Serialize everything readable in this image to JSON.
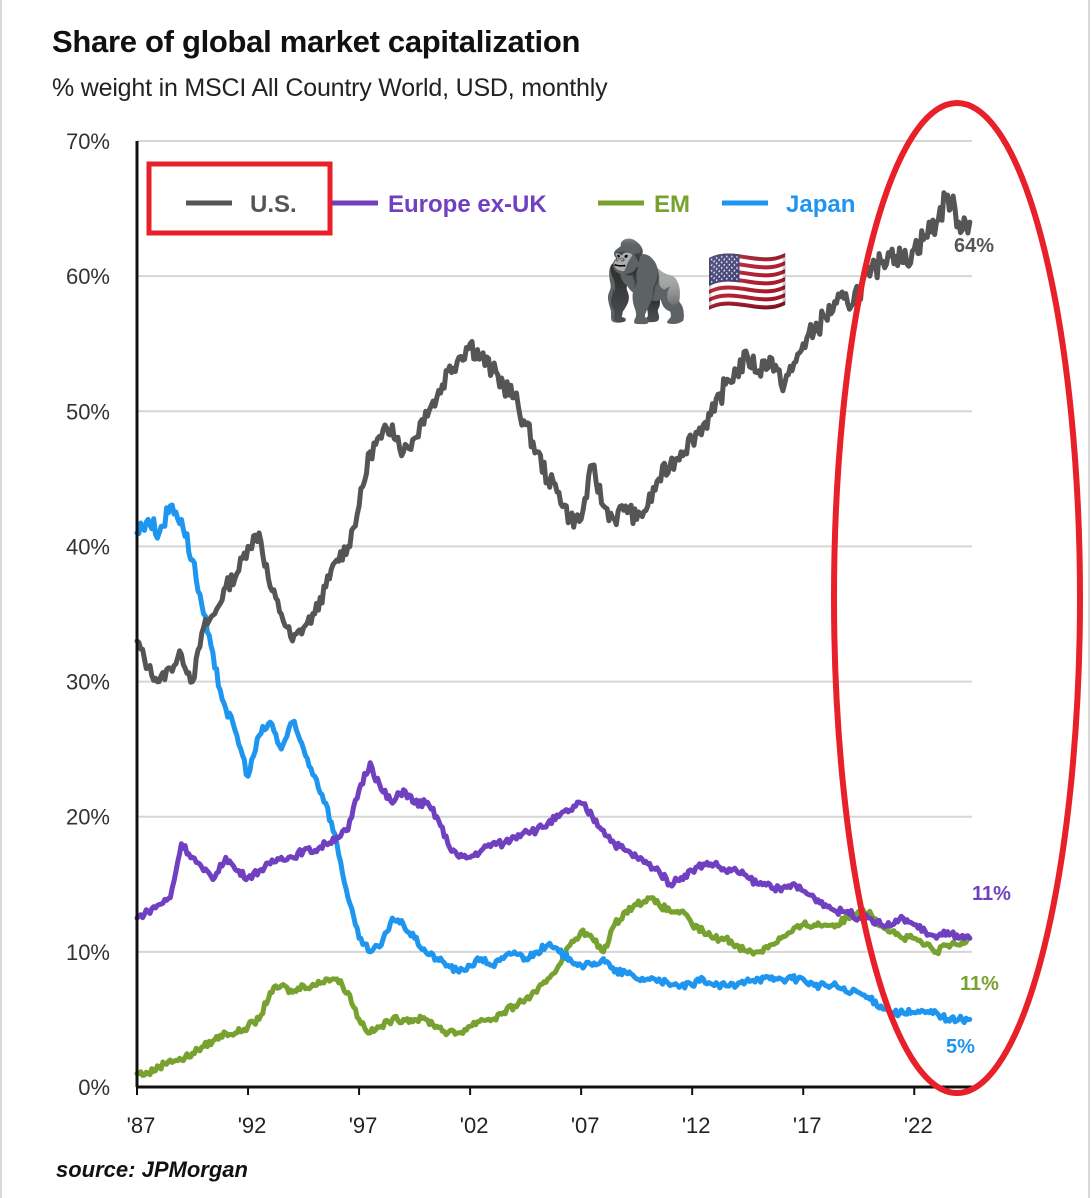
{
  "header": {
    "title": "Share of global market capitalization",
    "subtitle": "% weight in MSCI All Country World, USD, monthly"
  },
  "footer": {
    "source": "source: JPMorgan"
  },
  "annotations": {
    "emoji": [
      "gorilla-emoji",
      "us-flag-emoji"
    ],
    "emoji_glyphs": [
      "🦍",
      "🇺🇸"
    ],
    "highlight_color": "#e8202a"
  },
  "chart_data": {
    "type": "line",
    "title": "Share of global market capitalization",
    "subtitle": "% weight in MSCI All Country World, USD, monthly",
    "xlabel": "",
    "ylabel": "",
    "xlim": [
      1987,
      2024.9
    ],
    "ylim": [
      0,
      70
    ],
    "grid": true,
    "legend_position": "top-left",
    "x_ticks": [
      "'87",
      "'92",
      "'97",
      "'02",
      "'07",
      "'12",
      "'17",
      "'22"
    ],
    "x_tick_values": [
      1987,
      1992,
      1997,
      2002,
      2007,
      2012,
      2017,
      2022
    ],
    "y_ticks": [
      "0%",
      "10%",
      "20%",
      "30%",
      "40%",
      "50%",
      "60%",
      "70%"
    ],
    "y_tick_values": [
      0,
      10,
      20,
      30,
      40,
      50,
      60,
      70
    ],
    "series": [
      {
        "name": "U.S.",
        "color": "#555555",
        "end_label": "64%",
        "points": [
          [
            1987,
            33
          ],
          [
            1987.5,
            31
          ],
          [
            1988,
            30
          ],
          [
            1988.5,
            31
          ],
          [
            1989,
            32
          ],
          [
            1989.5,
            30
          ],
          [
            1990,
            34
          ],
          [
            1990.5,
            35
          ],
          [
            1991,
            37
          ],
          [
            1991.5,
            38
          ],
          [
            1992,
            40
          ],
          [
            1992.5,
            41
          ],
          [
            1993,
            37
          ],
          [
            1993.5,
            35
          ],
          [
            1994,
            33
          ],
          [
            1994.5,
            34
          ],
          [
            1995,
            35
          ],
          [
            1995.5,
            37
          ],
          [
            1996,
            39
          ],
          [
            1996.5,
            40
          ],
          [
            1997,
            43
          ],
          [
            1997.5,
            47
          ],
          [
            1998,
            48
          ],
          [
            1998.5,
            49
          ],
          [
            1999,
            47
          ],
          [
            1999.5,
            48
          ],
          [
            2000,
            50
          ],
          [
            2000.5,
            51
          ],
          [
            2001,
            53
          ],
          [
            2001.5,
            54
          ],
          [
            2002,
            55
          ],
          [
            2002.5,
            54
          ],
          [
            2003,
            53
          ],
          [
            2003.5,
            52
          ],
          [
            2004,
            51
          ],
          [
            2004.5,
            49
          ],
          [
            2005,
            47
          ],
          [
            2005.5,
            45
          ],
          [
            2006,
            44
          ],
          [
            2006.5,
            42
          ],
          [
            2007,
            42
          ],
          [
            2007.5,
            46
          ],
          [
            2008,
            43
          ],
          [
            2008.5,
            42
          ],
          [
            2009,
            43
          ],
          [
            2009.5,
            42
          ],
          [
            2010,
            43
          ],
          [
            2010.5,
            45
          ],
          [
            2011,
            46
          ],
          [
            2011.5,
            47
          ],
          [
            2012,
            48
          ],
          [
            2012.5,
            49
          ],
          [
            2013,
            50
          ],
          [
            2013.5,
            52
          ],
          [
            2014,
            53
          ],
          [
            2014.5,
            54
          ],
          [
            2015,
            53
          ],
          [
            2015.5,
            54
          ],
          [
            2016,
            52
          ],
          [
            2016.5,
            53
          ],
          [
            2017,
            55
          ],
          [
            2017.5,
            56
          ],
          [
            2018,
            57
          ],
          [
            2018.5,
            58
          ],
          [
            2019,
            58
          ],
          [
            2019.5,
            59
          ],
          [
            2020,
            60
          ],
          [
            2020.5,
            61
          ],
          [
            2021,
            62
          ],
          [
            2021.5,
            61
          ],
          [
            2022,
            62
          ],
          [
            2022.5,
            63
          ],
          [
            2023,
            64
          ],
          [
            2023.5,
            66
          ],
          [
            2024,
            64
          ],
          [
            2024.5,
            64
          ]
        ]
      },
      {
        "name": "Europe ex-UK",
        "color": "#7040c0",
        "end_label": "11%",
        "points": [
          [
            1987,
            12.5
          ],
          [
            1987.5,
            13
          ],
          [
            1988,
            13.5
          ],
          [
            1988.5,
            14
          ],
          [
            1989,
            18
          ],
          [
            1989.5,
            17
          ],
          [
            1990,
            16
          ],
          [
            1990.5,
            15.5
          ],
          [
            1991,
            17
          ],
          [
            1991.5,
            16
          ],
          [
            1992,
            15.5
          ],
          [
            1992.5,
            16
          ],
          [
            1993,
            16.5
          ],
          [
            1993.5,
            17
          ],
          [
            1994,
            17
          ],
          [
            1994.5,
            17.5
          ],
          [
            1995,
            17.5
          ],
          [
            1995.5,
            18
          ],
          [
            1996,
            18.5
          ],
          [
            1996.5,
            19
          ],
          [
            1997,
            22
          ],
          [
            1997.5,
            24
          ],
          [
            1998,
            22
          ],
          [
            1998.5,
            21
          ],
          [
            1999,
            22
          ],
          [
            1999.5,
            21
          ],
          [
            2000,
            21
          ],
          [
            2000.5,
            20
          ],
          [
            2001,
            18
          ],
          [
            2001.5,
            17
          ],
          [
            2002,
            17
          ],
          [
            2002.5,
            17.5
          ],
          [
            2003,
            18
          ],
          [
            2003.5,
            18
          ],
          [
            2004,
            18.5
          ],
          [
            2004.5,
            19
          ],
          [
            2005,
            19
          ],
          [
            2005.5,
            19.5
          ],
          [
            2006,
            20
          ],
          [
            2006.5,
            20.5
          ],
          [
            2007,
            21
          ],
          [
            2007.5,
            20
          ],
          [
            2008,
            19
          ],
          [
            2008.5,
            18
          ],
          [
            2009,
            17.5
          ],
          [
            2009.5,
            17
          ],
          [
            2010,
            16.5
          ],
          [
            2010.5,
            16
          ],
          [
            2011,
            15
          ],
          [
            2011.5,
            15.5
          ],
          [
            2012,
            16
          ],
          [
            2012.5,
            16.5
          ],
          [
            2013,
            16.5
          ],
          [
            2013.5,
            16
          ],
          [
            2014,
            16
          ],
          [
            2014.5,
            15.5
          ],
          [
            2015,
            15
          ],
          [
            2015.5,
            15
          ],
          [
            2016,
            14.5
          ],
          [
            2016.5,
            15
          ],
          [
            2017,
            14.5
          ],
          [
            2017.5,
            14
          ],
          [
            2018,
            13.5
          ],
          [
            2018.5,
            13
          ],
          [
            2019,
            13
          ],
          [
            2019.5,
            12.5
          ],
          [
            2020,
            12.5
          ],
          [
            2020.5,
            12
          ],
          [
            2021,
            12
          ],
          [
            2021.5,
            12.5
          ],
          [
            2022,
            12
          ],
          [
            2022.5,
            11.5
          ],
          [
            2023,
            11
          ],
          [
            2023.5,
            11.5
          ],
          [
            2024,
            11
          ],
          [
            2024.5,
            11
          ]
        ]
      },
      {
        "name": "EM",
        "color": "#78a22f",
        "end_label": "11%",
        "points": [
          [
            1987,
            1
          ],
          [
            1987.5,
            1
          ],
          [
            1988,
            1.5
          ],
          [
            1988.5,
            2
          ],
          [
            1989,
            2
          ],
          [
            1989.5,
            2.5
          ],
          [
            1990,
            3
          ],
          [
            1990.5,
            3.5
          ],
          [
            1991,
            4
          ],
          [
            1991.5,
            4
          ],
          [
            1992,
            4.5
          ],
          [
            1992.5,
            5
          ],
          [
            1993,
            7
          ],
          [
            1993.5,
            7.5
          ],
          [
            1994,
            7
          ],
          [
            1994.5,
            7.5
          ],
          [
            1995,
            7.5
          ],
          [
            1995.5,
            8
          ],
          [
            1996,
            8
          ],
          [
            1996.5,
            7
          ],
          [
            1997,
            5
          ],
          [
            1997.5,
            4
          ],
          [
            1998,
            4.5
          ],
          [
            1998.5,
            5
          ],
          [
            1999,
            5
          ],
          [
            1999.5,
            5
          ],
          [
            2000,
            5
          ],
          [
            2000.5,
            4.5
          ],
          [
            2001,
            4
          ],
          [
            2001.5,
            4
          ],
          [
            2002,
            4.5
          ],
          [
            2002.5,
            5
          ],
          [
            2003,
            5
          ],
          [
            2003.5,
            5.5
          ],
          [
            2004,
            6
          ],
          [
            2004.5,
            6.5
          ],
          [
            2005,
            7
          ],
          [
            2005.5,
            8
          ],
          [
            2006,
            9
          ],
          [
            2006.5,
            10.5
          ],
          [
            2007,
            11.5
          ],
          [
            2007.5,
            11
          ],
          [
            2008,
            10
          ],
          [
            2008.5,
            12
          ],
          [
            2009,
            13
          ],
          [
            2009.5,
            13.5
          ],
          [
            2010,
            14
          ],
          [
            2010.5,
            13.5
          ],
          [
            2011,
            13
          ],
          [
            2011.5,
            13
          ],
          [
            2012,
            12
          ],
          [
            2012.5,
            11.5
          ],
          [
            2013,
            11
          ],
          [
            2013.5,
            11
          ],
          [
            2014,
            10.5
          ],
          [
            2014.5,
            10
          ],
          [
            2015,
            10
          ],
          [
            2015.5,
            10.5
          ],
          [
            2016,
            11
          ],
          [
            2016.5,
            11.5
          ],
          [
            2017,
            12
          ],
          [
            2017.5,
            12
          ],
          [
            2018,
            12
          ],
          [
            2018.5,
            12
          ],
          [
            2019,
            12.5
          ],
          [
            2019.5,
            13
          ],
          [
            2020,
            13
          ],
          [
            2020.5,
            12
          ],
          [
            2021,
            11.5
          ],
          [
            2021.5,
            11
          ],
          [
            2022,
            11
          ],
          [
            2022.5,
            10.5
          ],
          [
            2023,
            10
          ],
          [
            2023.5,
            10.5
          ],
          [
            2024,
            10.5
          ],
          [
            2024.5,
            11
          ]
        ]
      },
      {
        "name": "Japan",
        "color": "#1e96f0",
        "end_label": "5%",
        "points": [
          [
            1987,
            41
          ],
          [
            1987.5,
            42
          ],
          [
            1988,
            41
          ],
          [
            1988.5,
            43
          ],
          [
            1989,
            42
          ],
          [
            1989.5,
            39
          ],
          [
            1990,
            35
          ],
          [
            1990.5,
            31
          ],
          [
            1991,
            28
          ],
          [
            1991.5,
            26
          ],
          [
            1992,
            23
          ],
          [
            1992.5,
            26
          ],
          [
            1993,
            27
          ],
          [
            1993.5,
            25
          ],
          [
            1994,
            27
          ],
          [
            1994.5,
            25
          ],
          [
            1995,
            23
          ],
          [
            1995.5,
            21
          ],
          [
            1996,
            18
          ],
          [
            1996.5,
            14
          ],
          [
            1997,
            11
          ],
          [
            1997.5,
            10
          ],
          [
            1998,
            10.5
          ],
          [
            1998.5,
            12.5
          ],
          [
            1999,
            12
          ],
          [
            1999.5,
            11
          ],
          [
            2000,
            10
          ],
          [
            2000.5,
            9.5
          ],
          [
            2001,
            9
          ],
          [
            2001.5,
            8.5
          ],
          [
            2002,
            9
          ],
          [
            2002.5,
            9.5
          ],
          [
            2003,
            9
          ],
          [
            2003.5,
            9.5
          ],
          [
            2004,
            10
          ],
          [
            2004.5,
            9.5
          ],
          [
            2005,
            10
          ],
          [
            2005.5,
            10.5
          ],
          [
            2006,
            10
          ],
          [
            2006.5,
            9.5
          ],
          [
            2007,
            9
          ],
          [
            2007.5,
            9
          ],
          [
            2008,
            9.5
          ],
          [
            2008.5,
            8.5
          ],
          [
            2009,
            8.5
          ],
          [
            2009.5,
            8
          ],
          [
            2010,
            8
          ],
          [
            2010.5,
            8
          ],
          [
            2011,
            7.5
          ],
          [
            2011.5,
            7.5
          ],
          [
            2012,
            7.5
          ],
          [
            2012.5,
            8
          ],
          [
            2013,
            7.5
          ],
          [
            2013.5,
            7.5
          ],
          [
            2014,
            7.5
          ],
          [
            2014.5,
            8
          ],
          [
            2015,
            8
          ],
          [
            2015.5,
            8
          ],
          [
            2016,
            8
          ],
          [
            2016.5,
            8
          ],
          [
            2017,
            8
          ],
          [
            2017.5,
            7.5
          ],
          [
            2018,
            7.5
          ],
          [
            2018.5,
            7.5
          ],
          [
            2019,
            7
          ],
          [
            2019.5,
            7
          ],
          [
            2020,
            6.5
          ],
          [
            2020.5,
            6
          ],
          [
            2021,
            5.5
          ],
          [
            2021.5,
            5.5
          ],
          [
            2022,
            5.5
          ],
          [
            2022.5,
            5.5
          ],
          [
            2023,
            5.5
          ],
          [
            2023.5,
            5
          ],
          [
            2024,
            5
          ],
          [
            2024.5,
            5
          ]
        ]
      }
    ]
  }
}
